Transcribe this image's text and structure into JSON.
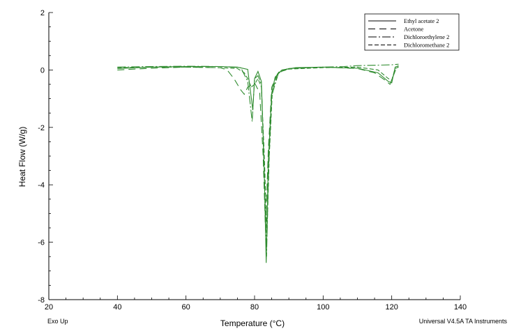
{
  "footer": {
    "left": "Exo Up",
    "right": "Universal V4.5A TA Instruments"
  },
  "chart_data": {
    "type": "line",
    "title": "",
    "xlabel": "Temperature (°C)",
    "ylabel": "Heat Flow (W/g)",
    "xlim": [
      20,
      140
    ],
    "ylim": [
      -8,
      2
    ],
    "x_ticks": [
      20,
      40,
      60,
      80,
      100,
      120,
      140
    ],
    "y_ticks": [
      2,
      0,
      -2,
      -4,
      -6,
      -8
    ],
    "grid": false,
    "legend_position": "top-right",
    "line_color": "#2e8b2e",
    "series": [
      {
        "name": "Ethyl acetate 2",
        "dash": "solid",
        "points": [
          [
            40,
            0.05
          ],
          [
            50,
            0.1
          ],
          [
            60,
            0.12
          ],
          [
            70,
            0.12
          ],
          [
            75,
            0.1
          ],
          [
            78,
            0.02
          ],
          [
            79.5,
            -1.4
          ],
          [
            80,
            -0.3
          ],
          [
            81,
            -0.05
          ],
          [
            82,
            -0.4
          ],
          [
            82.8,
            -3.5
          ],
          [
            83.4,
            -6.72
          ],
          [
            84,
            -3.2
          ],
          [
            85,
            -0.8
          ],
          [
            86,
            -0.25
          ],
          [
            88,
            0.0
          ],
          [
            92,
            0.08
          ],
          [
            100,
            0.1
          ],
          [
            110,
            0.06
          ],
          [
            116,
            -0.1
          ],
          [
            119,
            -0.4
          ],
          [
            120,
            -0.45
          ],
          [
            121,
            0.1
          ],
          [
            122,
            0.15
          ]
        ]
      },
      {
        "name": "Acetone",
        "dash": "10,6",
        "points": [
          [
            40,
            0.0
          ],
          [
            50,
            0.06
          ],
          [
            60,
            0.1
          ],
          [
            70,
            0.08
          ],
          [
            72,
            0.0
          ],
          [
            74,
            -0.3
          ],
          [
            76,
            -0.7
          ],
          [
            77,
            -0.85
          ],
          [
            78,
            -0.6
          ],
          [
            80,
            -0.45
          ],
          [
            81.5,
            -0.8
          ],
          [
            82.5,
            -3.0
          ],
          [
            83.2,
            -5.6
          ],
          [
            84,
            -2.8
          ],
          [
            85,
            -0.6
          ],
          [
            87,
            -0.05
          ],
          [
            90,
            0.05
          ],
          [
            100,
            0.1
          ],
          [
            110,
            0.05
          ],
          [
            115,
            -0.1
          ],
          [
            118,
            -0.35
          ],
          [
            119.5,
            -0.5
          ],
          [
            120.5,
            -0.2
          ],
          [
            121.5,
            0.12
          ],
          [
            122,
            0.1
          ]
        ]
      },
      {
        "name": "Dichloroethylene 2",
        "dash": "12,3,2,3",
        "points": [
          [
            40,
            0.1
          ],
          [
            50,
            0.12
          ],
          [
            60,
            0.13
          ],
          [
            70,
            0.12
          ],
          [
            76,
            0.08
          ],
          [
            78,
            -0.4
          ],
          [
            79.3,
            -1.8
          ],
          [
            80,
            -0.3
          ],
          [
            81,
            -0.2
          ],
          [
            82,
            -0.5
          ],
          [
            82.9,
            -3.8
          ],
          [
            83.5,
            -6.5
          ],
          [
            84.1,
            -3.4
          ],
          [
            85,
            -0.9
          ],
          [
            87,
            -0.1
          ],
          [
            90,
            0.05
          ],
          [
            100,
            0.1
          ],
          [
            106,
            0.12
          ],
          [
            110,
            0.15
          ],
          [
            120,
            0.18
          ],
          [
            122,
            0.2
          ]
        ]
      },
      {
        "name": "Dichloromethane 2",
        "dash": "6,3",
        "points": [
          [
            40,
            0.08
          ],
          [
            50,
            0.1
          ],
          [
            60,
            0.1
          ],
          [
            70,
            0.08
          ],
          [
            75,
            0.05
          ],
          [
            77,
            -0.1
          ],
          [
            78,
            -0.3
          ],
          [
            79,
            -0.6
          ],
          [
            80,
            -0.5
          ],
          [
            81,
            -0.3
          ],
          [
            82,
            -0.6
          ],
          [
            82.9,
            -3.2
          ],
          [
            83.6,
            -5.8
          ],
          [
            84.3,
            -3.0
          ],
          [
            85.2,
            -0.7
          ],
          [
            87,
            -0.08
          ],
          [
            90,
            0.03
          ],
          [
            100,
            0.08
          ],
          [
            110,
            0.1
          ],
          [
            116,
            0.0
          ],
          [
            119,
            -0.3
          ],
          [
            120,
            -0.35
          ],
          [
            121,
            0.05
          ],
          [
            122,
            0.1
          ]
        ]
      }
    ]
  }
}
